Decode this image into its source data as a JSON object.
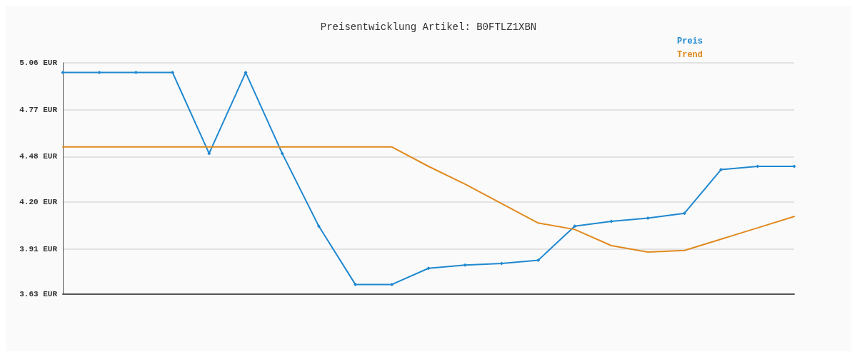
{
  "chart_data": {
    "type": "line",
    "title": "Preisentwicklung Artikel: B0FTLZ1XBN",
    "categories": [
      null,
      null,
      null,
      null,
      null,
      null,
      null,
      null,
      null,
      null,
      null,
      null,
      null,
      null,
      null,
      null,
      null,
      null,
      null,
      null,
      null
    ],
    "series": [
      {
        "name": "Preis",
        "color": "#1f88d0",
        "marker": "diamond",
        "values": [
          5.0,
          5.0,
          5.0,
          5.0,
          4.5,
          5.0,
          4.5,
          4.05,
          3.69,
          3.69,
          3.79,
          3.81,
          3.82,
          3.84,
          4.05,
          4.08,
          4.1,
          4.13,
          4.4,
          4.42,
          4.42
        ]
      },
      {
        "name": "Trend",
        "color": "#e08a1e",
        "marker": "none",
        "values": [
          4.54,
          4.54,
          4.54,
          4.54,
          4.54,
          4.54,
          4.54,
          4.54,
          4.54,
          4.54,
          4.42,
          4.31,
          4.19,
          4.07,
          4.03,
          3.93,
          3.89,
          3.9,
          3.97,
          4.04,
          4.11
        ]
      }
    ],
    "ylim": [
      3.63,
      5.06
    ],
    "yticks": [
      {
        "value": 3.63,
        "label": "3.63 EUR"
      },
      {
        "value": 3.91,
        "label": "3.91 EUR"
      },
      {
        "value": 4.2,
        "label": "4.20 EUR"
      },
      {
        "value": 4.48,
        "label": "4.48 EUR"
      },
      {
        "value": 4.77,
        "label": "4.77 EUR"
      },
      {
        "value": 5.06,
        "label": "5.06 EUR"
      }
    ],
    "grid": "y",
    "legend": "top right",
    "line_style": "solid"
  }
}
